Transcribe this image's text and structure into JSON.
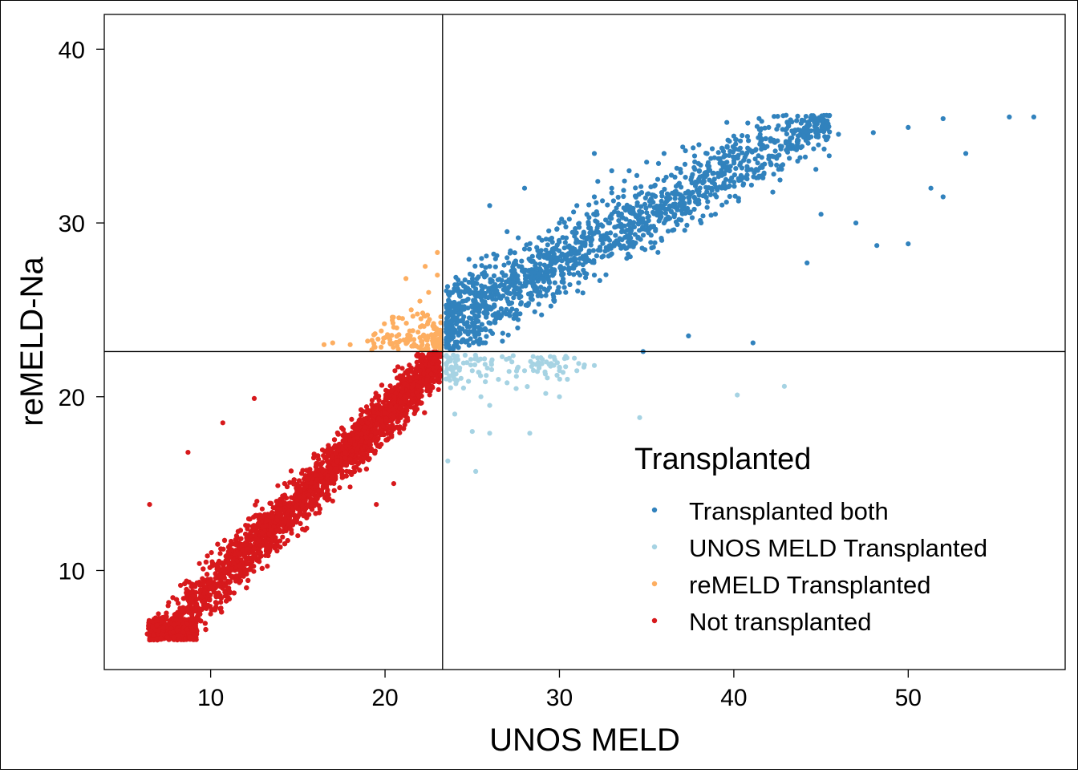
{
  "chart_data": {
    "type": "scatter",
    "title": "",
    "xlabel": "UNOS MELD",
    "ylabel": "reMELD-Na",
    "xlim": [
      3.9,
      59.0
    ],
    "ylim": [
      4.3,
      42.0
    ],
    "xticks": [
      10,
      20,
      30,
      40,
      50
    ],
    "yticks": [
      10,
      20,
      30,
      40
    ],
    "reference_lines": {
      "x": 23.3,
      "y": 22.6
    },
    "grid": false,
    "legend": {
      "title": "Transplanted",
      "position": "bottom-right"
    },
    "series": [
      {
        "name": "Transplanted both",
        "color": "#3182bd",
        "description": "UNOS MELD >= 23.3 and reMELD-Na >= 22.6",
        "points": [
          [
            24,
            24.5
          ],
          [
            24.5,
            25.5
          ],
          [
            25,
            26
          ],
          [
            26,
            27.5
          ],
          [
            27,
            28
          ],
          [
            28,
            28.5
          ],
          [
            29,
            29
          ],
          [
            30,
            30
          ],
          [
            31,
            31
          ],
          [
            32,
            31.5
          ],
          [
            33,
            32
          ],
          [
            34,
            33
          ],
          [
            35,
            33.5
          ],
          [
            36,
            34
          ],
          [
            38,
            34.5
          ],
          [
            40,
            35
          ],
          [
            42,
            35.5
          ],
          [
            43,
            36.2
          ],
          [
            44,
            35
          ],
          [
            46,
            35.1
          ],
          [
            48,
            35.2
          ],
          [
            50,
            35.5
          ],
          [
            52,
            36
          ],
          [
            55.8,
            36.1
          ],
          [
            57.2,
            36.1
          ],
          [
            53.3,
            34
          ],
          [
            52,
            31.5
          ],
          [
            51.3,
            32
          ],
          [
            50,
            28.8
          ],
          [
            48.2,
            28.7
          ],
          [
            44.2,
            27.7
          ],
          [
            41.1,
            23.1
          ],
          [
            34.8,
            22.6
          ],
          [
            37.4,
            23.5
          ],
          [
            24.6,
            26.1
          ],
          [
            25,
            27
          ],
          [
            27,
            29.5
          ],
          [
            30,
            26
          ],
          [
            32,
            27
          ],
          [
            36,
            30
          ],
          [
            39,
            31.5
          ],
          [
            45,
            30.5
          ],
          [
            47,
            30
          ],
          [
            26,
            31
          ],
          [
            28,
            32
          ],
          [
            32,
            34
          ],
          [
            33,
            33
          ]
        ]
      },
      {
        "name": "UNOS MELD Transplanted",
        "color": "#a6d3e3",
        "description": "UNOS MELD >= 23.3 and reMELD-Na < 22.6",
        "points": [
          [
            23.6,
            22
          ],
          [
            24,
            21
          ],
          [
            24.5,
            20.5
          ],
          [
            25,
            21.5
          ],
          [
            25.5,
            20
          ],
          [
            26,
            19.5
          ],
          [
            26.5,
            21
          ],
          [
            27,
            20.8
          ],
          [
            28,
            21.5
          ],
          [
            29,
            21.9
          ],
          [
            30,
            21.7
          ],
          [
            31,
            21.5
          ],
          [
            32,
            21.8
          ],
          [
            24,
            19
          ],
          [
            25,
            18
          ],
          [
            26,
            17.9
          ],
          [
            25.2,
            15.7
          ],
          [
            23.6,
            16.3
          ],
          [
            34.6,
            18.8
          ],
          [
            40.2,
            20.1
          ],
          [
            42.9,
            20.6
          ],
          [
            28.3,
            17.9
          ],
          [
            30,
            20
          ]
        ]
      },
      {
        "name": "reMELD Transplanted",
        "color": "#fdae61",
        "description": "UNOS MELD < 23.3 and reMELD-Na >= 22.6",
        "points": [
          [
            16.5,
            23
          ],
          [
            17,
            23.1
          ],
          [
            18,
            23
          ],
          [
            19,
            23.2
          ],
          [
            20,
            23.4
          ],
          [
            20.5,
            24
          ],
          [
            21,
            24.5
          ],
          [
            21.5,
            25
          ],
          [
            22,
            25.5
          ],
          [
            22.5,
            26
          ],
          [
            23,
            27
          ],
          [
            23,
            28.3
          ],
          [
            22.3,
            27.5
          ],
          [
            21.2,
            26.8
          ],
          [
            22.8,
            24
          ],
          [
            22.9,
            23
          ]
        ]
      },
      {
        "name": "Not transplanted",
        "color": "#d7191c",
        "description": "UNOS MELD < 23.3 and reMELD-Na < 22.6",
        "points": [
          [
            6.5,
            6
          ],
          [
            7,
            6.5
          ],
          [
            8,
            7.5
          ],
          [
            9,
            8.5
          ],
          [
            10,
            9.5
          ],
          [
            11,
            10.5
          ],
          [
            12,
            11.5
          ],
          [
            13,
            12.5
          ],
          [
            14,
            13.5
          ],
          [
            15,
            14.5
          ],
          [
            16,
            15.5
          ],
          [
            17,
            16.5
          ],
          [
            18,
            17.5
          ],
          [
            19,
            18.5
          ],
          [
            20,
            19.5
          ],
          [
            21,
            20.5
          ],
          [
            22,
            21.5
          ],
          [
            23,
            22.4
          ],
          [
            6.5,
            13.8
          ],
          [
            8.7,
            16.8
          ],
          [
            10.7,
            18.5
          ],
          [
            12.5,
            19.9
          ],
          [
            19.5,
            13.8
          ],
          [
            20.5,
            15
          ],
          [
            17,
            14
          ],
          [
            15,
            12
          ],
          [
            12,
            10
          ],
          [
            10,
            7.5
          ]
        ]
      }
    ]
  }
}
